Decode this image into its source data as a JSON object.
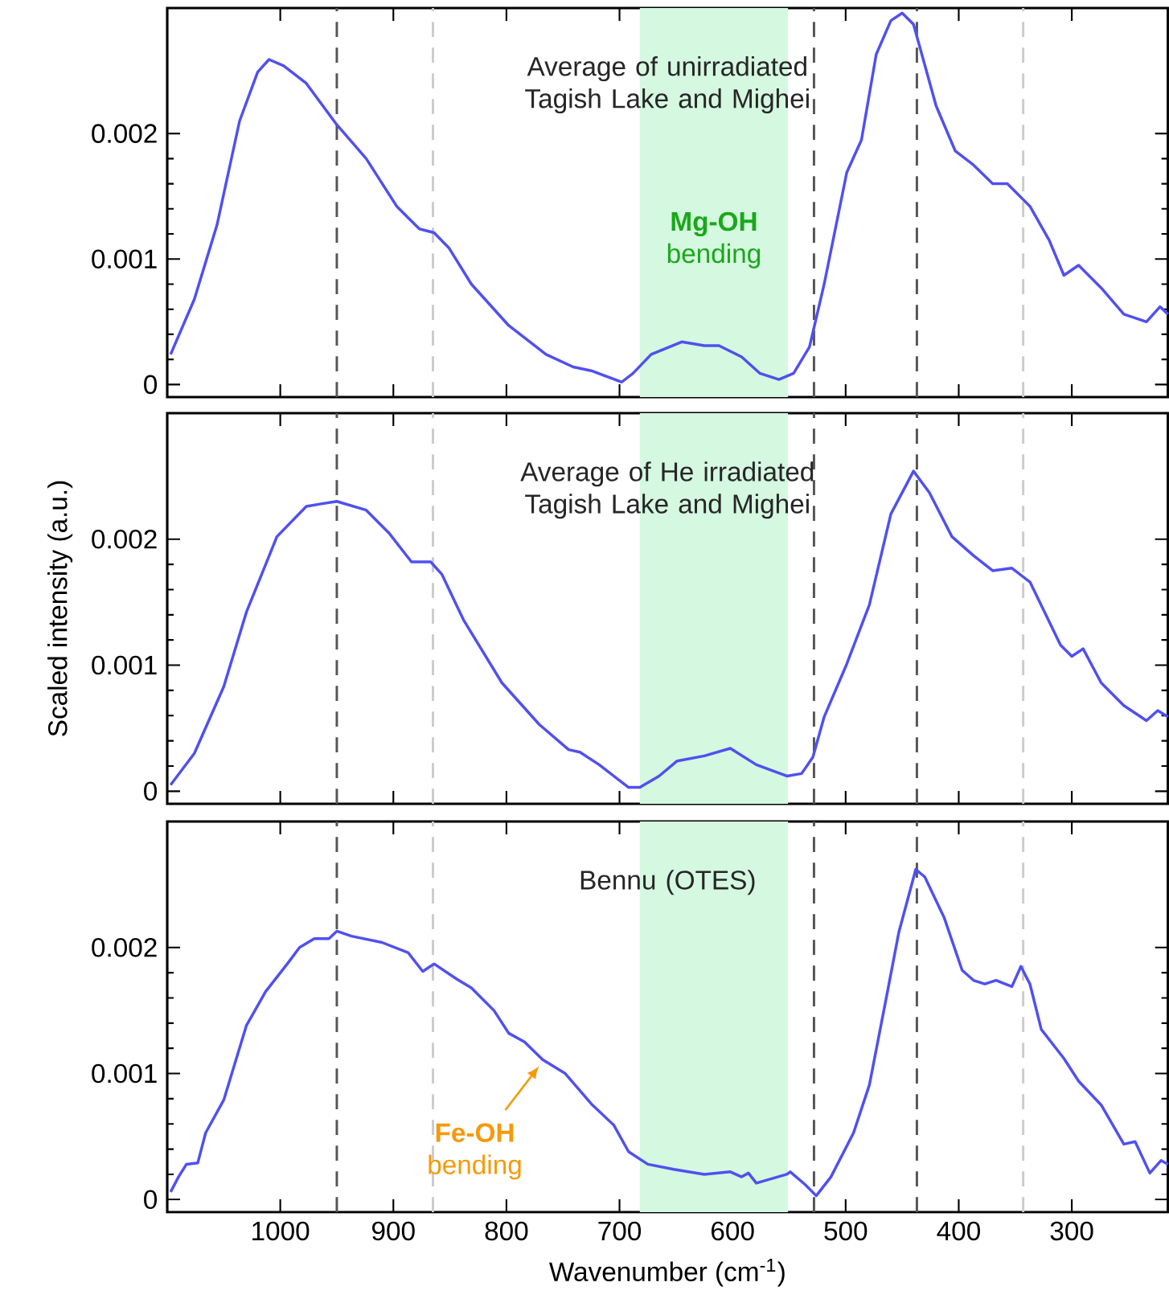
{
  "chart_data": [
    {
      "type": "line",
      "title": "Average of unirradiated Tagish Lake and Mighei",
      "xlim": [
        1100,
        215
      ],
      "ylim": [
        -0.0001,
        0.003
      ],
      "xticks": [
        1000,
        900,
        800,
        700,
        600,
        500,
        400,
        300
      ],
      "yticks": [
        0,
        0.001,
        0.002
      ],
      "tick_labels": "y",
      "series": [
        {
          "color": "#5050f0",
          "x": [
            1097,
            1076,
            1056,
            1036,
            1020,
            1010,
            997,
            977,
            950,
            924,
            897,
            877,
            864,
            851,
            831,
            798,
            765,
            741,
            725,
            698,
            688,
            672,
            645,
            625,
            612,
            592,
            576,
            559,
            546,
            532,
            519,
            499,
            486,
            473,
            460,
            450,
            440,
            420,
            403,
            387,
            370,
            357,
            337,
            320,
            307,
            294,
            274,
            254,
            234,
            222,
            215
          ],
          "values": [
            0.00024,
            0.00068,
            0.00127,
            0.0021,
            0.00249,
            0.00259,
            0.00254,
            0.0024,
            0.00207,
            0.0018,
            0.00142,
            0.00124,
            0.00121,
            0.00109,
            0.0008,
            0.00047,
            0.00024,
            0.00014,
            0.00011,
            2e-05,
            9e-05,
            0.00024,
            0.00034,
            0.00031,
            0.00031,
            0.00022,
            9e-05,
            4e-05,
            9e-05,
            0.0003,
            0.0008,
            0.00169,
            0.00195,
            0.00263,
            0.0029,
            0.00296,
            0.00287,
            0.00222,
            0.00186,
            0.00175,
            0.0016,
            0.0016,
            0.00142,
            0.00115,
            0.00087,
            0.00095,
            0.00077,
            0.00056,
            0.0005,
            0.00062,
            0.00056
          ]
        }
      ],
      "ref_lines": [
        {
          "axis": "x",
          "value": 950,
          "color": "#555555",
          "line_style": "dashed"
        },
        {
          "axis": "x",
          "value": 865,
          "color": "#cccccc",
          "line_style": "dashed"
        },
        {
          "axis": "x",
          "value": 528,
          "color": "#555555",
          "line_style": "dashed"
        },
        {
          "axis": "x",
          "value": 437,
          "color": "#555555",
          "line_style": "dashed"
        },
        {
          "axis": "x",
          "value": 343,
          "color": "#cccccc",
          "line_style": "dashed"
        }
      ],
      "bands": [
        {
          "axis": "x",
          "from": 551,
          "to": 682,
          "color": "#d5f8e0"
        }
      ],
      "annotations": [
        "**Mg-OH** bending"
      ]
    },
    {
      "type": "line",
      "title": "Average of He irradiated Tagish Lake and Mighei",
      "ylabel": "Scaled intensity (a.u.)",
      "xlim": [
        1100,
        215
      ],
      "ylim": [
        -0.0001,
        0.003
      ],
      "xticks": [
        1000,
        900,
        800,
        700,
        600,
        500,
        400,
        300
      ],
      "yticks": [
        0,
        0.001,
        0.002
      ],
      "tick_labels": "y",
      "series": [
        {
          "color": "#5050f0",
          "x": [
            1097,
            1076,
            1050,
            1030,
            1003,
            977,
            964,
            950,
            924,
            904,
            884,
            867,
            857,
            838,
            804,
            771,
            745,
            735,
            718,
            692,
            682,
            665,
            649,
            625,
            602,
            579,
            552,
            539,
            529,
            519,
            499,
            479,
            460,
            440,
            426,
            406,
            387,
            370,
            353,
            337,
            324,
            310,
            300,
            290,
            274,
            254,
            234,
            224,
            215
          ],
          "values": [
            5e-05,
            0.0003,
            0.00083,
            0.00142,
            0.00202,
            0.00226,
            0.00228,
            0.0023,
            0.00223,
            0.00205,
            0.00182,
            0.00182,
            0.00172,
            0.00136,
            0.00086,
            0.00053,
            0.00033,
            0.00031,
            0.00021,
            3e-05,
            3e-05,
            0.00012,
            0.00024,
            0.00028,
            0.00034,
            0.00021,
            0.00012,
            0.00014,
            0.00027,
            0.00059,
            0.00101,
            0.00148,
            0.0022,
            0.00254,
            0.00237,
            0.00202,
            0.00187,
            0.00175,
            0.00177,
            0.00166,
            0.00142,
            0.00116,
            0.00107,
            0.00113,
            0.00086,
            0.00068,
            0.00056,
            0.00064,
            0.00059
          ]
        }
      ],
      "ref_lines": [
        {
          "axis": "x",
          "value": 950,
          "color": "#555555",
          "line_style": "dashed"
        },
        {
          "axis": "x",
          "value": 865,
          "color": "#cccccc",
          "line_style": "dashed"
        },
        {
          "axis": "x",
          "value": 528,
          "color": "#555555",
          "line_style": "dashed"
        },
        {
          "axis": "x",
          "value": 437,
          "color": "#555555",
          "line_style": "dashed"
        },
        {
          "axis": "x",
          "value": 343,
          "color": "#cccccc",
          "line_style": "dashed"
        }
      ],
      "bands": [
        {
          "axis": "x",
          "from": 551,
          "to": 682,
          "color": "#d5f8e0"
        }
      ]
    },
    {
      "type": "line",
      "title": "Bennu (OTES)",
      "xlabel": "Wavenumber (cm$^{-1}$)",
      "xlim": [
        1100,
        215
      ],
      "ylim": [
        -0.0001,
        0.003
      ],
      "xticks": [
        1000,
        900,
        800,
        700,
        600,
        500,
        400,
        300
      ],
      "yticks": [
        0,
        0.001,
        0.002
      ],
      "series": [
        {
          "color": "#5050f0",
          "x": [
            1097,
            1090,
            1083,
            1073,
            1066,
            1050,
            1030,
            1013,
            993,
            983,
            970,
            957,
            950,
            937,
            910,
            887,
            874,
            864,
            844,
            831,
            811,
            798,
            784,
            768,
            748,
            725,
            705,
            692,
            675,
            652,
            625,
            602,
            592,
            586,
            579,
            552,
            549,
            536,
            526,
            513,
            493,
            479,
            463,
            453,
            438,
            430,
            413,
            397,
            387,
            377,
            367,
            353,
            345,
            337,
            327,
            307,
            294,
            274,
            254,
            244,
            231,
            221,
            215
          ],
          "values": [
            6e-05,
            0.00018,
            0.00028,
            0.00029,
            0.00053,
            0.00079,
            0.00138,
            0.00165,
            0.00188,
            0.002,
            0.00207,
            0.00207,
            0.00213,
            0.00209,
            0.00204,
            0.00196,
            0.00181,
            0.00187,
            0.00175,
            0.00168,
            0.0015,
            0.00132,
            0.00125,
            0.00111,
            0.001,
            0.00076,
            0.00059,
            0.00038,
            0.00028,
            0.00024,
            0.0002,
            0.00022,
            0.00018,
            0.00021,
            0.00013,
            0.0002,
            0.00022,
            0.00012,
            3e-05,
            0.00018,
            0.00053,
            0.00091,
            0.00165,
            0.00212,
            0.00262,
            0.00256,
            0.00224,
            0.00182,
            0.00174,
            0.00171,
            0.00174,
            0.00169,
            0.00185,
            0.00171,
            0.00135,
            0.00112,
            0.00094,
            0.00075,
            0.00044,
            0.00046,
            0.00021,
            0.00031,
            0.00028
          ]
        }
      ],
      "ref_lines": [
        {
          "axis": "x",
          "value": 950,
          "color": "#555555",
          "line_style": "dashed"
        },
        {
          "axis": "x",
          "value": 865,
          "color": "#cccccc",
          "line_style": "dashed"
        },
        {
          "axis": "x",
          "value": 528,
          "color": "#555555",
          "line_style": "dashed"
        },
        {
          "axis": "x",
          "value": 437,
          "color": "#555555",
          "line_style": "dashed"
        },
        {
          "axis": "x",
          "value": 343,
          "color": "#cccccc",
          "line_style": "dashed"
        }
      ],
      "bands": [
        {
          "axis": "x",
          "from": 551,
          "to": 682,
          "color": "#d5f8e0"
        }
      ],
      "annotations": [
        {
          "text": "**Fe-OH** bending",
          "x": 771,
          "y": 0.00106
        }
      ]
    }
  ]
}
